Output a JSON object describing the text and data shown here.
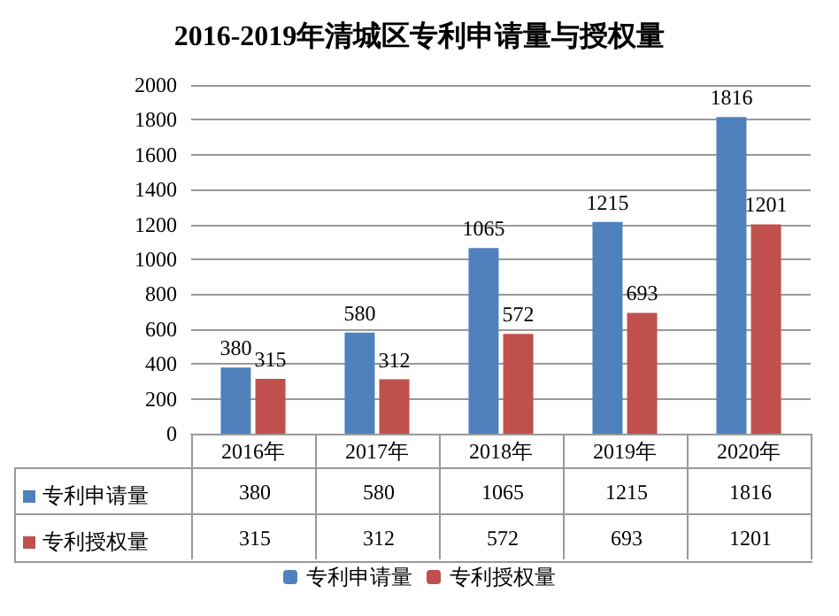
{
  "chart_data": {
    "type": "bar",
    "title": "2016-2019年清城区专利申请量与授权量",
    "categories": [
      "2016年",
      "2017年",
      "2018年",
      "2019年",
      "2020年"
    ],
    "series": [
      {
        "name": "专利申请量",
        "color": "#4f81bd",
        "values": [
          380,
          580,
          1065,
          1215,
          1816
        ]
      },
      {
        "name": "专利授权量",
        "color": "#c0504d",
        "values": [
          315,
          312,
          572,
          693,
          1201
        ]
      }
    ],
    "annotations": [
      {
        "text": "380",
        "x": "2016年",
        "y": 380
      },
      {
        "text": "580",
        "x": "2017年",
        "y": 580
      },
      {
        "text": "1065",
        "x": "2018年",
        "y": 1065
      },
      {
        "text": "1215",
        "x": "2019年",
        "y": 1215
      },
      {
        "text": "1816",
        "x": "2020年",
        "y": 1816
      },
      {
        "text": "315",
        "x": "2016年",
        "y": 315
      },
      {
        "text": "312",
        "x": "2017年",
        "y": 312
      },
      {
        "text": "572",
        "x": "2018年",
        "y": 572
      },
      {
        "text": "693",
        "x": "2019年",
        "y": 693
      },
      {
        "text": "1201",
        "x": "2020年",
        "y": 1201
      }
    ],
    "ylim": [
      0,
      2000
    ],
    "yticks": [
      0,
      200,
      400,
      600,
      800,
      1000,
      1200,
      1400,
      1600,
      1800,
      2000
    ],
    "grid": "y",
    "legend": "bottom",
    "data_labels": true
  }
}
